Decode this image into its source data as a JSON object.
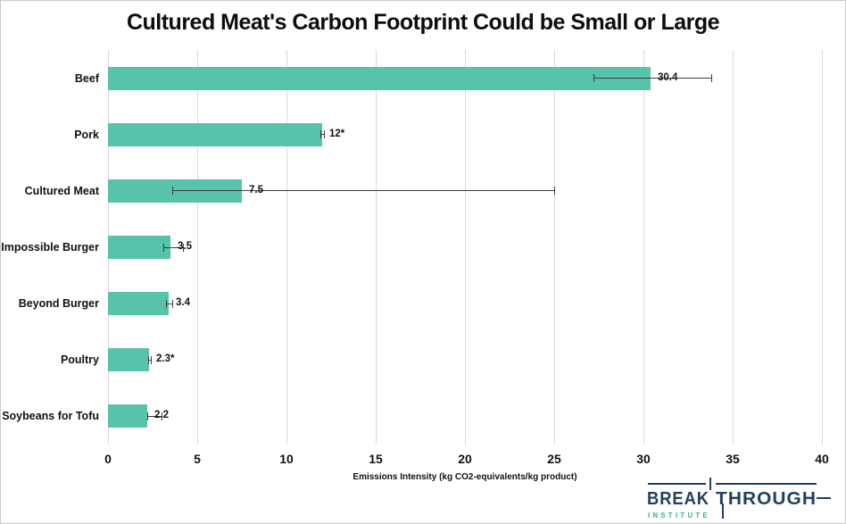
{
  "figure": {
    "background": "#ffffff",
    "border_color": "#c9c9c9"
  },
  "chart_data": {
    "type": "bar",
    "orientation": "horizontal",
    "title": "Cultured Meat's Carbon Footprint Could be Small or Large",
    "xlabel": "Emissions Intensity (kg CO2-equivalents/kg product)",
    "xlim": [
      0,
      40
    ],
    "xticks": [
      0,
      5,
      10,
      15,
      20,
      25,
      30,
      35,
      40
    ],
    "grid": true,
    "legend": "none",
    "bar_color": "#56c3aa",
    "gridline_color": "#d9d9d9",
    "error_bar_color": "#3d3d3d",
    "rows": [
      {
        "category": "Beef",
        "value": 30.4,
        "label": "30.4",
        "error_low": 27.2,
        "error_high": 33.8
      },
      {
        "category": "Pork",
        "value": 12,
        "label": "12*",
        "error_low": 11.9,
        "error_high": 12.1
      },
      {
        "category": "Cultured Meat",
        "value": 7.5,
        "label": "7.5",
        "error_low": 3.6,
        "error_high": 25.0
      },
      {
        "category": "Impossible Burger",
        "value": 3.5,
        "label": "3.5",
        "error_low": 3.1,
        "error_high": 4.2
      },
      {
        "category": "Beyond Burger",
        "value": 3.4,
        "label": "3.4",
        "error_low": 3.25,
        "error_high": 3.6
      },
      {
        "category": "Poultry",
        "value": 2.3,
        "label": "2.3*",
        "error_low": 2.25,
        "error_high": 2.4
      },
      {
        "category": "Soybeans for Tofu",
        "value": 2.2,
        "label": "2.2",
        "error_low": 2.2,
        "error_high": 3.0
      }
    ]
  },
  "logo": {
    "wordmark_part1": "BREAK",
    "wordmark_part2": "THROUGH",
    "subtext": "INSTITUTE",
    "navy": "#22405e",
    "teal": "#2caf98"
  }
}
